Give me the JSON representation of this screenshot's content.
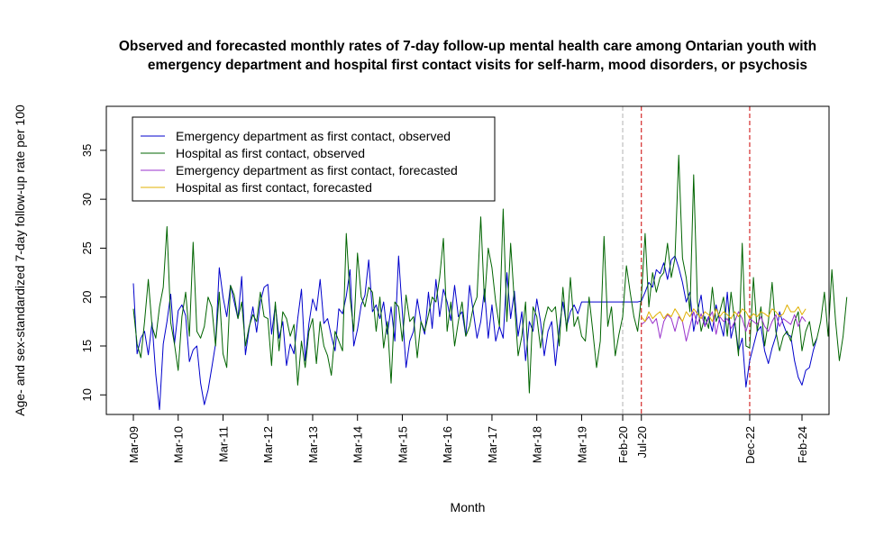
{
  "chart_data": {
    "type": "line",
    "title_line1": "Observed and forecasted monthly rates of 7-day follow-up mental health care among Ontarian youth with",
    "title_line2": "emergency department and hospital first contact visits for self-harm, mood disorders, or psychosis",
    "xlabel": "Month",
    "ylabel": "Age- and sex-standardized 7-day follow-up rate per 100",
    "ylim": [
      8,
      39.5
    ],
    "yticks": [
      10,
      15,
      20,
      25,
      30,
      35
    ],
    "x_start": "Mar-09",
    "x_end": "Feb-24",
    "xticks": [
      {
        "label": "Mar-09",
        "index": 0
      },
      {
        "label": "Mar-10",
        "index": 12
      },
      {
        "label": "Mar-11",
        "index": 24
      },
      {
        "label": "Mar-12",
        "index": 36
      },
      {
        "label": "Mar-13",
        "index": 48
      },
      {
        "label": "Mar-14",
        "index": 60
      },
      {
        "label": "Mar-15",
        "index": 72
      },
      {
        "label": "Mar-16",
        "index": 84
      },
      {
        "label": "Mar-17",
        "index": 96
      },
      {
        "label": "Mar-18",
        "index": 108
      },
      {
        "label": "Mar-19",
        "index": 120
      },
      {
        "label": "Feb-20",
        "index": 131
      },
      {
        "label": "Jul-20",
        "index": 136
      },
      {
        "label": "Dec-22",
        "index": 165
      },
      {
        "label": "Feb-24",
        "index": 179
      }
    ],
    "vlines": [
      {
        "index": 131,
        "color": "#b0b0b0"
      },
      {
        "index": 136,
        "color": "#cc0000"
      },
      {
        "index": 165,
        "color": "#cc0000"
      }
    ],
    "legend": {
      "placement": "top-left",
      "entries": [
        {
          "label": "Emergency department as first contact, observed",
          "color": "#0000cc"
        },
        {
          "label": "Hospital as first contact, observed",
          "color": "#006400"
        },
        {
          "label": "Emergency department as first contact, forecasted",
          "color": "#9932cc"
        },
        {
          "label": "Hospital as first contact, forecasted",
          "color": "#e0b000"
        }
      ]
    },
    "series": [
      {
        "name": "Emergency department as first contact, observed",
        "color": "#0000cc",
        "start_index": 0,
        "values": [
          21.4,
          14.2,
          15.8,
          16.5,
          14.1,
          17.4,
          12.1,
          8.5,
          15.2,
          17.5,
          20.3,
          15.2,
          18.6,
          19.2,
          18.1,
          13.4,
          14.6,
          15.0,
          11.2,
          9.0,
          10.5,
          12.8,
          15.2,
          23.0,
          20.0,
          18.0,
          21.2,
          19.5,
          17.8,
          22.1,
          14.1,
          16.8,
          19.0,
          16.4,
          19.5,
          21.0,
          21.3,
          16.2,
          19.2,
          15.8,
          17.5,
          13.0,
          15.2,
          14.2,
          17.8,
          20.8,
          13.5,
          17.3,
          19.8,
          18.6,
          21.8,
          17.3,
          17.8,
          16.0,
          14.5,
          18.8,
          18.3,
          20.1,
          22.8,
          15.0,
          16.7,
          19.2,
          20.2,
          23.8,
          18.5,
          19.2,
          17.8,
          19.5,
          16.2,
          19.0,
          15.5,
          24.2,
          18.5,
          12.8,
          15.5,
          16.5,
          19.8,
          17.5,
          16.2,
          20.5,
          16.8,
          21.8,
          18.0,
          20.8,
          19.5,
          17.6,
          21.2,
          18.0,
          18.5,
          16.0,
          21.2,
          18.5,
          15.8,
          17.5,
          20.8,
          15.8,
          19.2,
          15.5,
          17.0,
          15.8,
          22.5,
          17.8,
          20.6,
          16.0,
          18.5,
          13.5,
          17.5,
          16.5,
          19.8,
          17.5,
          14.0,
          16.5,
          17.5,
          13.0,
          16.8,
          19.5,
          17.0,
          18.5,
          19.2,
          18.3,
          19.5,
          19.5,
          19.5,
          19.5,
          19.5,
          19.5,
          19.5,
          19.5,
          19.5,
          19.5,
          19.5,
          19.5,
          19.5,
          19.5,
          19.5,
          19.5,
          19.6,
          20.5,
          21.5,
          21.0,
          22.8,
          22.4,
          23.5,
          21.8,
          23.8,
          24.2,
          23.0,
          21.5,
          19.5,
          20.5,
          16.5,
          18.5,
          20.2,
          17.0,
          18.0,
          16.5,
          19.2,
          17.5,
          16.0,
          20.5,
          15.8,
          17.5,
          14.5,
          15.8,
          10.8,
          13.5,
          15.0,
          16.5,
          17.0,
          14.5,
          13.2,
          14.8,
          16.0,
          18.5,
          17.2,
          16.2,
          16.0,
          13.5,
          11.8,
          11.0,
          12.5,
          12.8,
          14.5,
          15.8
        ]
      },
      {
        "name": "Hospital as first contact, observed",
        "color": "#006400",
        "start_index": 0,
        "values": [
          18.8,
          15.2,
          13.8,
          17.5,
          21.8,
          17.0,
          15.8,
          19.0,
          21.0,
          27.2,
          17.4,
          15.2,
          12.5,
          18.0,
          20.5,
          16.0,
          25.6,
          16.5,
          15.8,
          17.0,
          20.0,
          19.0,
          15.0,
          20.5,
          14.2,
          12.8,
          21.2,
          20.2,
          17.8,
          19.5,
          15.0,
          17.0,
          18.2,
          17.5,
          20.5,
          18.0,
          17.8,
          13.0,
          19.5,
          14.5,
          18.5,
          17.8,
          16.0,
          17.2,
          11.0,
          15.5,
          12.8,
          16.5,
          17.8,
          13.2,
          17.5,
          15.0,
          14.0,
          12.0,
          16.5,
          15.5,
          14.5,
          26.5,
          20.0,
          16.5,
          24.5,
          20.0,
          19.0,
          21.0,
          20.5,
          16.5,
          20.0,
          14.8,
          17.5,
          11.2,
          19.5,
          19.0,
          15.5,
          20.2,
          17.5,
          18.0,
          13.8,
          17.5,
          16.5,
          18.2,
          20.0,
          19.5,
          22.0,
          26.0,
          16.5,
          19.5,
          15.0,
          17.5,
          19.5,
          16.0,
          17.0,
          19.0,
          20.0,
          28.2,
          19.5,
          25.0,
          23.0,
          19.5,
          17.0,
          29.0,
          17.5,
          25.5,
          19.5,
          14.0,
          16.0,
          19.5,
          10.2,
          19.0,
          18.0,
          14.8,
          17.5,
          19.0,
          18.5,
          19.0,
          15.0,
          21.0,
          16.5,
          22.0,
          17.0,
          18.0,
          16.0,
          15.5,
          20.0,
          16.5,
          12.8,
          15.5,
          26.2,
          17.0,
          19.0,
          14.0,
          16.2,
          18.0,
          23.2,
          20.5,
          18.0,
          16.5,
          20.0,
          26.5,
          19.0,
          22.5,
          20.5,
          22.0,
          22.5,
          25.5,
          22.0,
          24.0,
          34.5,
          24.0,
          22.0,
          18.5,
          32.5,
          19.5,
          16.5,
          18.0,
          16.8,
          21.0,
          17.5,
          18.5,
          20.0,
          16.0,
          20.5,
          17.5,
          14.0,
          25.5,
          15.0,
          14.8,
          22.0,
          16.5,
          19.0,
          15.0,
          17.5,
          21.5,
          16.5,
          14.5,
          16.0,
          16.5,
          15.5,
          17.5,
          18.5,
          14.5,
          16.5,
          17.5,
          15.0,
          15.8,
          17.5,
          20.5,
          16.0,
          22.8,
          17.5,
          13.5,
          16.0,
          20.0
        ]
      },
      {
        "name": "Emergency department as first contact, forecasted",
        "color": "#9932cc",
        "start_index": 136,
        "values": [
          17.2,
          17.5,
          18.0,
          17.3,
          17.8,
          15.8,
          17.5,
          18.2,
          17.8,
          16.5,
          18.0,
          17.5,
          15.5,
          17.0,
          18.5,
          17.2,
          18.3,
          17.0,
          17.8,
          18.5,
          16.2,
          18.0,
          17.5,
          17.8,
          16.8,
          17.5,
          18.5,
          17.8,
          16.5,
          17.8,
          17.5,
          17.2,
          18.0,
          17.0,
          16.5,
          17.5,
          18.2,
          17.0,
          17.8,
          17.5,
          17.2,
          18.2,
          17.0,
          18.0,
          17.5
        ]
      },
      {
        "name": "Hospital as first contact, forecasted",
        "color": "#e0b000",
        "start_index": 136,
        "values": [
          18.0,
          17.5,
          18.5,
          17.8,
          18.2,
          18.5,
          17.8,
          18.3,
          18.0,
          18.8,
          18.2,
          17.5,
          18.5,
          18.0,
          18.8,
          18.3,
          17.8,
          18.5,
          18.2,
          17.5,
          18.8,
          18.0,
          18.5,
          18.2,
          17.8,
          18.5,
          18.0,
          18.8,
          18.5,
          17.8,
          18.3,
          18.0,
          18.5,
          18.3,
          18.0,
          18.8,
          18.5,
          18.0,
          18.3,
          19.2,
          18.5,
          18.5,
          19.0,
          18.2,
          18.8
        ]
      }
    ]
  }
}
